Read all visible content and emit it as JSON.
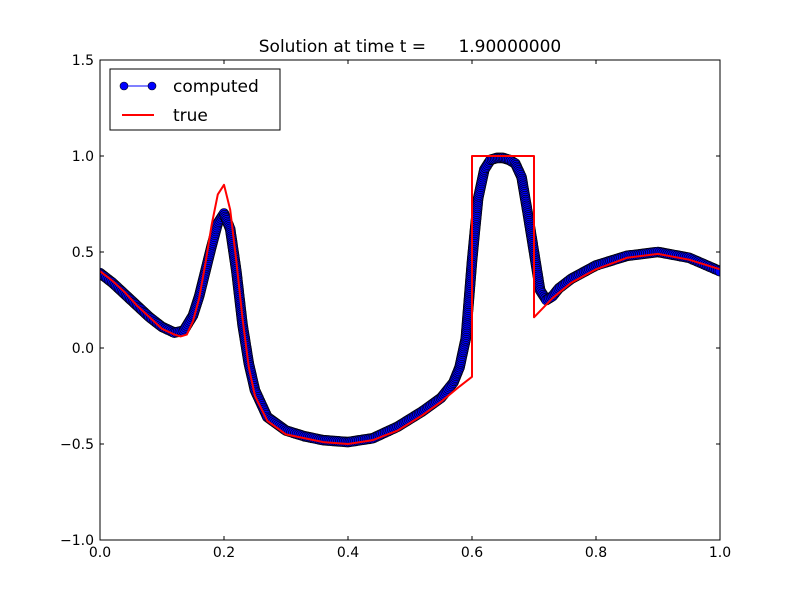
{
  "chart_data": {
    "type": "line",
    "title": "Solution at time t =      1.90000000",
    "xlabel": "",
    "ylabel": "",
    "xlim": [
      0,
      1
    ],
    "ylim": [
      -1,
      1.5
    ],
    "x_ticks": [
      0.0,
      0.2,
      0.4,
      0.6,
      0.8,
      1.0
    ],
    "x_tick_labels": [
      "0.0",
      "0.2",
      "0.4",
      "0.6",
      "0.8",
      "1.0"
    ],
    "y_ticks": [
      -1.0,
      -0.5,
      0.0,
      0.5,
      1.0,
      1.5
    ],
    "y_tick_labels": [
      "−1.0",
      "−0.5",
      "0.0",
      "0.5",
      "1.0",
      "1.5"
    ],
    "grid": false,
    "legend_position": "top-left",
    "series": [
      {
        "name": "computed",
        "color": "#0000ff",
        "marker": "circle",
        "x": [
          0.0,
          0.02,
          0.04,
          0.06,
          0.08,
          0.1,
          0.12,
          0.135,
          0.15,
          0.16,
          0.17,
          0.18,
          0.19,
          0.2,
          0.21,
          0.22,
          0.23,
          0.24,
          0.25,
          0.27,
          0.3,
          0.33,
          0.36,
          0.4,
          0.44,
          0.48,
          0.52,
          0.55,
          0.57,
          0.58,
          0.59,
          0.595,
          0.6,
          0.605,
          0.61,
          0.62,
          0.63,
          0.64,
          0.65,
          0.66,
          0.67,
          0.68,
          0.69,
          0.7,
          0.705,
          0.71,
          0.72,
          0.73,
          0.74,
          0.76,
          0.8,
          0.85,
          0.9,
          0.95,
          1.0
        ],
        "y": [
          0.39,
          0.34,
          0.28,
          0.22,
          0.16,
          0.11,
          0.08,
          0.09,
          0.17,
          0.27,
          0.4,
          0.53,
          0.65,
          0.7,
          0.62,
          0.4,
          0.12,
          -0.08,
          -0.22,
          -0.36,
          -0.43,
          -0.46,
          -0.48,
          -0.49,
          -0.47,
          -0.41,
          -0.33,
          -0.26,
          -0.18,
          -0.1,
          0.05,
          0.25,
          0.45,
          0.62,
          0.78,
          0.93,
          0.98,
          0.99,
          0.99,
          0.98,
          0.96,
          0.89,
          0.7,
          0.5,
          0.4,
          0.3,
          0.25,
          0.27,
          0.31,
          0.36,
          0.43,
          0.48,
          0.5,
          0.47,
          0.4
        ]
      },
      {
        "name": "true",
        "color": "#ff0000",
        "x": [
          0.0,
          0.02,
          0.04,
          0.06,
          0.08,
          0.1,
          0.12,
          0.13,
          0.14,
          0.15,
          0.16,
          0.17,
          0.18,
          0.19,
          0.2,
          0.21,
          0.22,
          0.23,
          0.24,
          0.25,
          0.27,
          0.3,
          0.33,
          0.36,
          0.4,
          0.44,
          0.48,
          0.52,
          0.55,
          0.58,
          0.6,
          0.6,
          0.7,
          0.7,
          0.73,
          0.76,
          0.8,
          0.85,
          0.9,
          0.95,
          1.0
        ],
        "y": [
          0.4,
          0.35,
          0.29,
          0.22,
          0.16,
          0.1,
          0.07,
          0.06,
          0.07,
          0.14,
          0.26,
          0.44,
          0.64,
          0.8,
          0.85,
          0.72,
          0.45,
          0.15,
          -0.1,
          -0.25,
          -0.38,
          -0.45,
          -0.47,
          -0.49,
          -0.5,
          -0.48,
          -0.43,
          -0.35,
          -0.28,
          -0.2,
          -0.15,
          1.0,
          1.0,
          0.16,
          0.26,
          0.34,
          0.41,
          0.47,
          0.49,
          0.46,
          0.41
        ]
      }
    ]
  }
}
